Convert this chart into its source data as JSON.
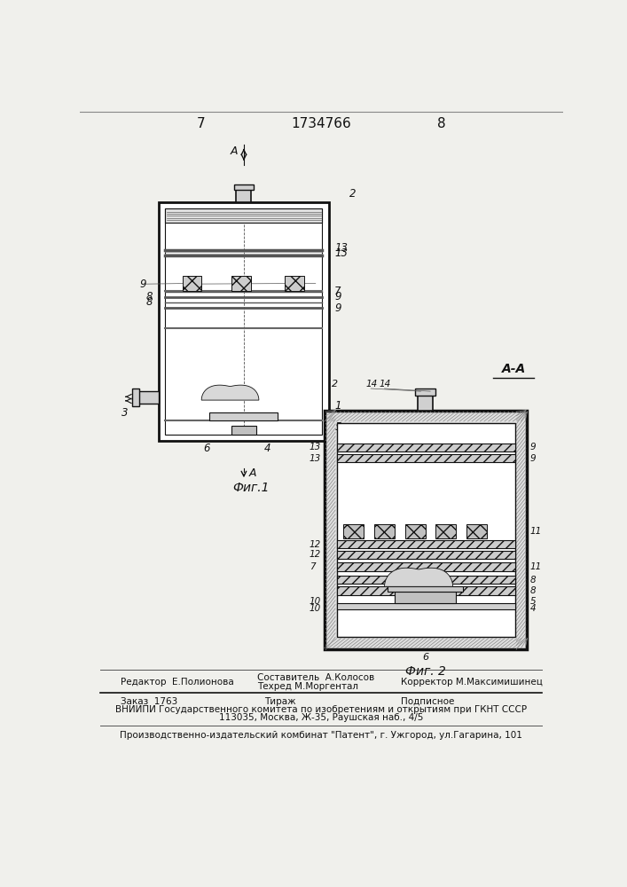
{
  "page_number_left": "7",
  "patent_number": "1734766",
  "page_number_right": "8",
  "fig1_caption": "Фиг.1",
  "fig2_caption": "Фиг. 2",
  "section_label": "А-А",
  "bg_color": "#f0f0ec",
  "line_color": "#111111",
  "footer_col1_line1": "Редактор  Е.Полионова",
  "footer_col2_line1": "Составитель  А.Колосов",
  "footer_col2_line2": "Техред М.Моргентал",
  "footer_col3_line1": "Корректор М.Максимишинец",
  "footer2_col1": "Заказ  1763",
  "footer2_col2": "Тираж",
  "footer2_col3": "Подписное",
  "footer2_line2": "ВНИИПИ Государственного комитета по изобретениям и открытиям при ГКНТ СССР",
  "footer2_line3": "113035, Москва, Ж-35, Раушская наб., 4/5",
  "footer3": "Производственно-издательский комбинат \"Патент\", г. Ужгород, ул.Гагарина, 101"
}
